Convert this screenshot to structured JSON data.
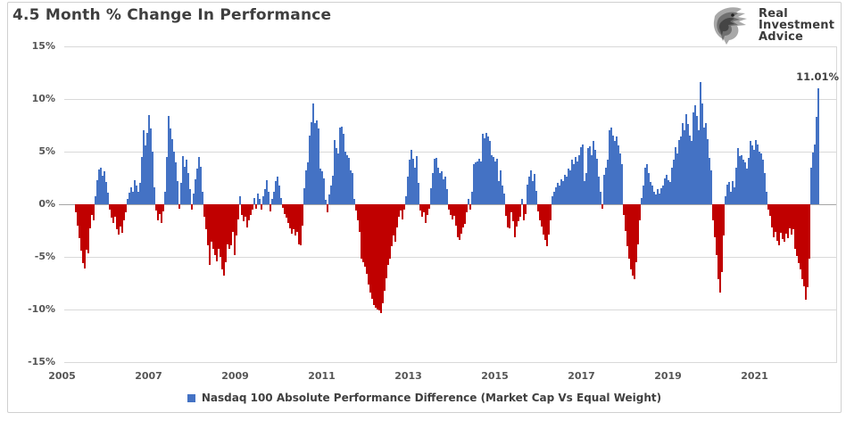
{
  "title": "4.5 Month % Change In Performance",
  "logo": {
    "line1": "Real",
    "line2": "Investment",
    "line3": "Advice"
  },
  "annotation": {
    "label": "11.01%"
  },
  "legend": {
    "label": "Nasdaq 100 Absolute Performance Difference (Market Cap Vs Equal Weight)"
  },
  "chart_data": {
    "type": "bar",
    "title": "4.5 Month % Change In Performance",
    "series_name": "Nasdaq 100 Absolute Performance Difference (Market Cap Vs Equal Weight)",
    "ylim": [
      -15,
      15
    ],
    "grid": true,
    "legend_position": "bottom",
    "colors": {
      "positive": "#4472C4",
      "negative": "#C00000"
    },
    "last_value_label": "11.01%",
    "last_value": 11.01,
    "y_ticks": [
      {
        "label": "15%",
        "value": 15
      },
      {
        "label": "10%",
        "value": 10
      },
      {
        "label": "5%",
        "value": 5
      },
      {
        "label": "0%",
        "value": 0
      },
      {
        "label": "-5%",
        "value": -5
      },
      {
        "label": "-10%",
        "value": -10
      },
      {
        "label": "-15%",
        "value": -15
      }
    ],
    "x_ticks": [
      {
        "label": "2005",
        "year": 2005
      },
      {
        "label": "2007",
        "year": 2007
      },
      {
        "label": "2009",
        "year": 2009
      },
      {
        "label": "2011",
        "year": 2011
      },
      {
        "label": "2013",
        "year": 2013
      },
      {
        "label": "2015",
        "year": 2015
      },
      {
        "label": "2017",
        "year": 2017
      },
      {
        "label": "2019",
        "year": 2019
      },
      {
        "label": "2021",
        "year": 2021
      }
    ],
    "x_start_year": 2005.32,
    "x_step_years": 0.04124,
    "values": [
      -0.8,
      -2.0,
      -3.2,
      -4.4,
      -5.6,
      -6.1,
      -4.3,
      -4.7,
      -2.3,
      -1.0,
      -1.5,
      0.8,
      2.3,
      3.3,
      3.5,
      2.7,
      3.1,
      2.1,
      1.1,
      -0.5,
      -1.3,
      -1.8,
      -1.2,
      -2.4,
      -2.9,
      -2.1,
      -2.7,
      -1.5,
      -0.8,
      0.5,
      1.1,
      1.6,
      1.2,
      2.3,
      1.8,
      1.2,
      2.0,
      4.5,
      7.0,
      5.6,
      6.8,
      8.5,
      7.2,
      5.0,
      1.6,
      -0.6,
      -1.5,
      -0.9,
      -1.8,
      -0.7,
      1.2,
      4.5,
      8.4,
      7.2,
      6.2,
      5.0,
      4.0,
      2.2,
      -0.4,
      2.0,
      4.6,
      3.6,
      4.2,
      3.0,
      1.4,
      -0.5,
      1.0,
      2.4,
      3.4,
      4.5,
      3.6,
      1.2,
      -1.2,
      -2.4,
      -3.9,
      -5.8,
      -3.6,
      -4.2,
      -4.8,
      -5.4,
      -4.2,
      -5.0,
      -6.2,
      -6.8,
      -5.5,
      -3.8,
      -4.2,
      -3.9,
      -2.6,
      -4.8,
      -3.0,
      -1.4,
      0.8,
      -1.0,
      -1.6,
      -1.2,
      -2.2,
      -1.5,
      -1.0,
      -0.5,
      0.6,
      -0.4,
      1.0,
      0.5,
      -0.5,
      0.8,
      1.4,
      2.3,
      1.2,
      -0.7,
      0.5,
      1.2,
      2.2,
      2.6,
      1.8,
      0.6,
      -0.3,
      -0.9,
      -1.3,
      -1.8,
      -2.3,
      -2.8,
      -2.4,
      -3.0,
      -2.6,
      -3.8,
      -3.9,
      -2.0,
      1.5,
      3.2,
      4.0,
      6.5,
      7.8,
      9.6,
      7.7,
      8.0,
      7.2,
      3.4,
      3.1,
      2.5,
      0.4,
      -0.8,
      0.9,
      1.8,
      2.7,
      6.1,
      5.3,
      4.8,
      7.3,
      7.4,
      6.7,
      5.0,
      4.7,
      4.4,
      3.2,
      3.0,
      0.5,
      -0.6,
      -1.5,
      -2.6,
      -5.2,
      -5.5,
      -5.9,
      -6.6,
      -7.6,
      -8.4,
      -9.0,
      -9.6,
      -9.8,
      -10.0,
      -10.1,
      -10.3,
      -9.4,
      -8.2,
      -7.0,
      -5.8,
      -5.2,
      -4.0,
      -3.0,
      -3.6,
      -2.2,
      -1.2,
      -0.6,
      -1.4,
      -0.5,
      0.8,
      2.6,
      4.2,
      5.2,
      4.3,
      3.5,
      4.6,
      2.0,
      -0.6,
      -1.2,
      -0.8,
      -1.8,
      -1.0,
      -0.4,
      1.5,
      3.0,
      4.3,
      4.4,
      3.5,
      3.0,
      3.1,
      2.4,
      2.6,
      1.4,
      -0.5,
      -1.0,
      -1.4,
      -1.1,
      -2.0,
      -3.1,
      -3.4,
      -2.8,
      -2.2,
      -1.9,
      -0.8,
      0.5,
      -0.5,
      1.2,
      3.8,
      4.0,
      4.1,
      4.3,
      4.1,
      6.7,
      6.3,
      6.8,
      6.4,
      6.0,
      4.7,
      4.5,
      4.1,
      4.3,
      2.2,
      3.2,
      1.8,
      1.0,
      -1.1,
      -2.2,
      -2.3,
      -0.8,
      -1.6,
      -3.1,
      -2.1,
      -1.6,
      -1.2,
      0.5,
      -1.5,
      -0.9,
      1.9,
      2.6,
      3.2,
      2.2,
      2.9,
      1.3,
      -0.7,
      -1.5,
      -2.1,
      -2.9,
      -3.4,
      -4.0,
      -2.9,
      -1.5,
      0.8,
      1.2,
      1.6,
      2.0,
      1.8,
      2.4,
      2.2,
      2.8,
      2.6,
      3.4,
      3.2,
      4.2,
      3.8,
      4.5,
      4.1,
      4.7,
      5.4,
      5.7,
      2.2,
      3.0,
      5.3,
      5.5,
      4.7,
      6.0,
      5.2,
      4.3,
      2.6,
      1.2,
      -0.4,
      2.8,
      3.5,
      4.2,
      7.0,
      7.3,
      6.5,
      6.0,
      6.4,
      5.6,
      4.8,
      3.8,
      -1.0,
      -2.5,
      -4.0,
      -5.2,
      -6.2,
      -6.8,
      -7.1,
      -5.5,
      -3.8,
      -1.5,
      0.6,
      1.8,
      3.5,
      3.8,
      3.0,
      2.1,
      1.8,
      1.2,
      0.9,
      1.4,
      1.0,
      1.5,
      1.8,
      2.5,
      2.8,
      2.3,
      2.1,
      3.5,
      4.2,
      5.4,
      4.8,
      6.1,
      6.4,
      7.7,
      7.0,
      8.6,
      7.6,
      6.5,
      6.0,
      8.7,
      9.4,
      8.4,
      7.0,
      11.6,
      9.6,
      7.3,
      7.7,
      6.2,
      4.4,
      3.2,
      -1.5,
      -3.1,
      -4.8,
      -7.1,
      -8.4,
      -6.4,
      -3.0,
      0.8,
      1.9,
      2.1,
      1.2,
      2.2,
      1.6,
      3.5,
      5.3,
      4.6,
      4.7,
      4.2,
      4.0,
      3.4,
      4.4,
      6.0,
      5.6,
      5.2,
      6.1,
      5.7,
      5.0,
      4.8,
      4.2,
      3.0,
      1.2,
      -0.5,
      -1.1,
      -2.2,
      -3.1,
      -2.6,
      -3.5,
      -3.9,
      -2.7,
      -3.3,
      -3.6,
      -2.8,
      -3.2,
      -2.3,
      -2.9,
      -2.4,
      -4.2,
      -4.9,
      -5.6,
      -6.2,
      -7.1,
      -7.8,
      -9.1,
      -7.9,
      -5.2,
      3.5,
      4.9,
      5.7,
      8.3,
      11.01
    ]
  }
}
